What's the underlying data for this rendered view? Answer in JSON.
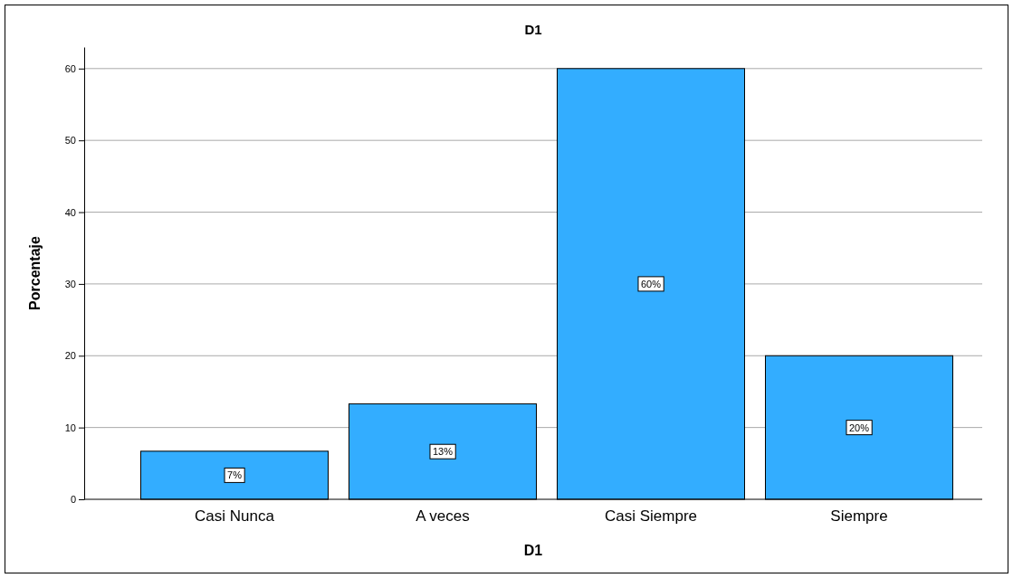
{
  "chart_data": {
    "type": "bar",
    "title": "D1",
    "xlabel": "D1",
    "ylabel": "Porcentaje",
    "categories": [
      "Casi Nunca",
      "A veces",
      "Casi Siempre",
      "Siempre"
    ],
    "values": [
      6.7,
      13.3,
      60,
      20
    ],
    "value_labels": [
      "7%",
      "13%",
      "60%",
      "20%"
    ],
    "color": "#33adff",
    "ylim": [
      0,
      63
    ],
    "yticks": [
      0,
      10,
      20,
      30,
      40,
      50,
      60
    ],
    "grid": "y"
  }
}
